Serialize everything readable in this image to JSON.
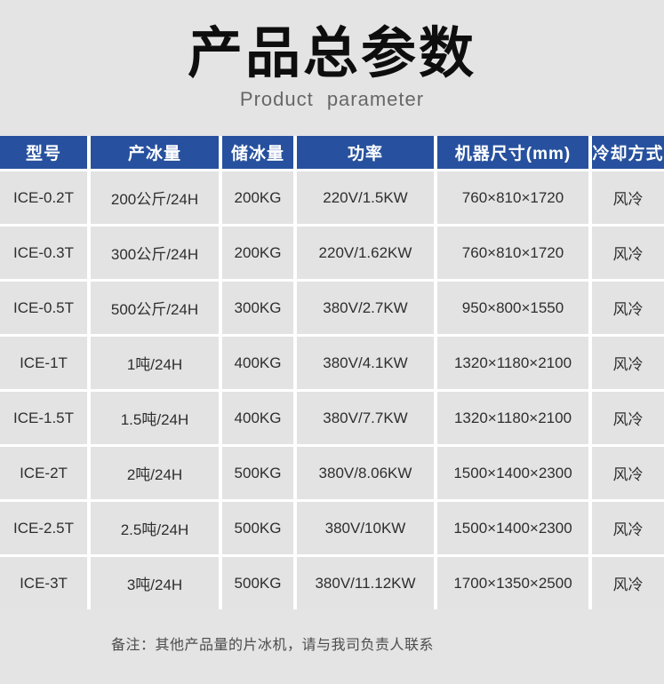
{
  "page": {
    "title": "产品总参数",
    "subtitle": "Product parameter",
    "note": "备注：其他产品量的片冰机，请与我司负责人联系"
  },
  "colors": {
    "page_bg": "#e4e4e4",
    "header_bg": "#27519e",
    "cell_bg": "#e3e3e3",
    "grid_line": "#ffffff",
    "header_text": "#ffffff"
  },
  "chart_data": {
    "type": "table",
    "title": "产品总参数",
    "columns": [
      "型号",
      "产冰量",
      "储冰量",
      "功率",
      "机器尺寸(mm)",
      "冷却方式"
    ],
    "rows": [
      [
        "ICE-0.2T",
        "200公斤/24H",
        "200KG",
        "220V/1.5KW",
        "760×810×1720",
        "风冷"
      ],
      [
        "ICE-0.3T",
        "300公斤/24H",
        "200KG",
        "220V/1.62KW",
        "760×810×1720",
        "风冷"
      ],
      [
        "ICE-0.5T",
        "500公斤/24H",
        "300KG",
        "380V/2.7KW",
        "950×800×1550",
        "风冷"
      ],
      [
        "ICE-1T",
        "1吨/24H",
        "400KG",
        "380V/4.1KW",
        "1320×1180×2100",
        "风冷"
      ],
      [
        "ICE-1.5T",
        "1.5吨/24H",
        "400KG",
        "380V/7.7KW",
        "1320×1180×2100",
        "风冷"
      ],
      [
        "ICE-2T",
        "2吨/24H",
        "500KG",
        "380V/8.06KW",
        "1500×1400×2300",
        "风冷"
      ],
      [
        "ICE-2.5T",
        "2.5吨/24H",
        "500KG",
        "380V/10KW",
        "1500×1400×2300",
        "风冷"
      ],
      [
        "ICE-3T",
        "3吨/24H",
        "500KG",
        "380V/11.12KW",
        "1700×1350×2500",
        "风冷"
      ]
    ]
  }
}
